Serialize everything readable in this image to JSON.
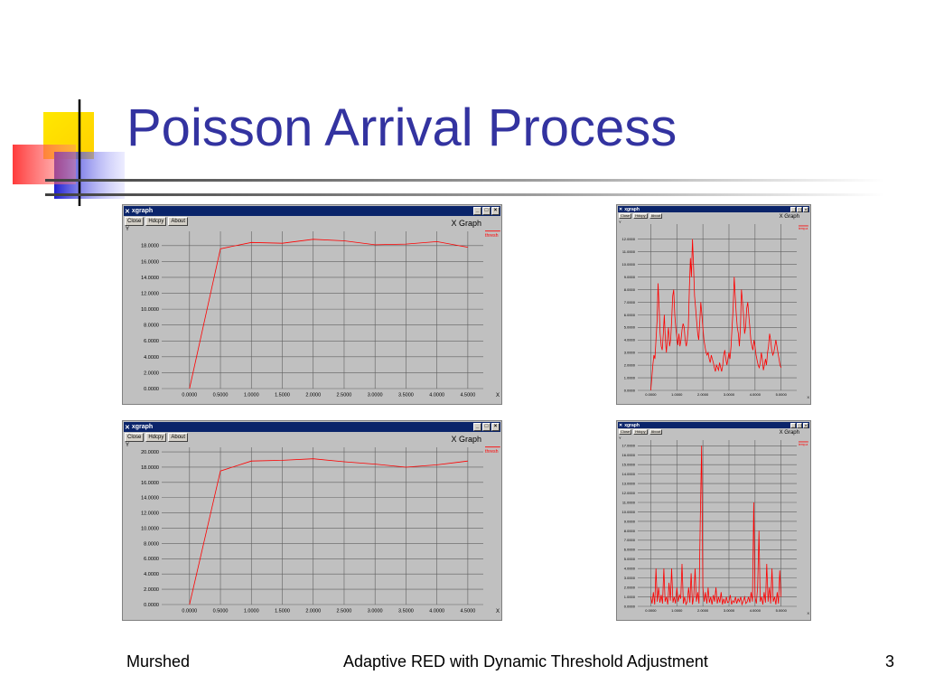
{
  "slide": {
    "title": "Poisson Arrival Process",
    "footer_left": "Murshed",
    "footer_center": "Adaptive RED with Dynamic Threshold Adjustment",
    "footer_right": "3"
  },
  "window": {
    "title": "xgraph",
    "close_label": "Close",
    "hdcpy_label": "Hdcpy",
    "about_label": "About",
    "graph_title": "X Graph",
    "y_axis_label": "Y",
    "x_axis_label": "X",
    "min_glyph": "_",
    "max_glyph": "□",
    "close_glyph": "×"
  },
  "colors": {
    "line": "#ff0000",
    "grid": "#606060",
    "panel": "#c0c0c0",
    "titlebar": "#0a246a",
    "slide_title": "#3333a0"
  },
  "chart_data": [
    {
      "type": "line",
      "series": [
        {
          "name": "thresh",
          "x": [
            0.0,
            0.5,
            1.0,
            1.5,
            2.0,
            2.5,
            3.0,
            3.5,
            4.0,
            4.5
          ],
          "y": [
            0.0,
            17.6,
            18.4,
            18.3,
            18.8,
            18.6,
            18.1,
            18.2,
            18.5,
            17.8
          ]
        }
      ],
      "xticks": [
        "0.0000",
        "0.5000",
        "1.0000",
        "1.5000",
        "2.0000",
        "2.5000",
        "3.0000",
        "3.5000",
        "4.0000",
        "4.5000"
      ],
      "yticks": [
        "0.0000",
        "2.0000",
        "4.0000",
        "6.0000",
        "8.0000",
        "10.0000",
        "12.0000",
        "14.0000",
        "16.0000",
        "18.0000"
      ],
      "xlim": [
        -0.45,
        4.75
      ],
      "ylim": [
        0,
        18.8
      ],
      "ylim_top": 19.8,
      "grid": true
    },
    {
      "type": "line",
      "series": [
        {
          "name": "temp.a",
          "x": [
            0.0,
            0.04,
            0.08,
            0.12,
            0.16,
            0.2,
            0.24,
            0.28,
            0.32,
            0.36,
            0.4,
            0.44,
            0.48,
            0.52,
            0.56,
            0.6,
            0.64,
            0.68,
            0.72,
            0.76,
            0.8,
            0.84,
            0.88,
            0.92,
            0.96,
            1.0,
            1.04,
            1.08,
            1.12,
            1.16,
            1.2,
            1.24,
            1.28,
            1.32,
            1.36,
            1.4,
            1.44,
            1.48,
            1.52,
            1.56,
            1.6,
            1.64,
            1.68,
            1.72,
            1.76,
            1.8,
            1.84,
            1.88,
            1.92,
            1.96,
            2.0,
            2.04,
            2.08,
            2.12,
            2.16,
            2.2,
            2.24,
            2.28,
            2.32,
            2.36,
            2.4,
            2.44,
            2.48,
            2.52,
            2.56,
            2.6,
            2.64,
            2.68,
            2.72,
            2.76,
            2.8,
            2.84,
            2.88,
            2.92,
            2.96,
            3.0,
            3.04,
            3.08,
            3.12,
            3.16,
            3.2,
            3.24,
            3.28,
            3.32,
            3.36,
            3.4,
            3.44,
            3.48,
            3.52,
            3.56,
            3.6,
            3.64,
            3.68,
            3.72,
            3.76,
            3.8,
            3.84,
            3.88,
            3.92,
            3.96,
            4.0,
            4.04,
            4.08,
            4.12,
            4.16,
            4.2,
            4.24,
            4.28,
            4.32,
            4.36,
            4.4,
            4.44,
            4.48,
            4.52,
            4.56,
            4.6,
            4.64,
            4.68,
            4.72,
            4.76,
            4.8,
            4.84,
            4.88,
            4.92,
            4.96,
            5.0
          ],
          "y": [
            0.0,
            1.0,
            2.0,
            2.8,
            2.5,
            4.0,
            5.5,
            8.5,
            6.5,
            4.5,
            3.5,
            3.2,
            4.5,
            6.0,
            4.0,
            3.0,
            4.2,
            5.0,
            3.5,
            4.0,
            5.5,
            7.5,
            8.0,
            6.0,
            5.0,
            4.2,
            3.6,
            4.5,
            3.5,
            4.0,
            4.8,
            5.3,
            5.0,
            4.0,
            3.5,
            4.0,
            5.0,
            8.0,
            10.5,
            9.0,
            12.0,
            10.0,
            7.5,
            6.5,
            5.5,
            4.5,
            4.0,
            5.5,
            7.0,
            6.0,
            5.0,
            4.0,
            3.5,
            3.0,
            2.8,
            3.0,
            2.5,
            2.2,
            2.8,
            2.5,
            2.2,
            1.8,
            1.5,
            2.0,
            1.8,
            1.6,
            2.2,
            1.8,
            1.5,
            2.0,
            2.8,
            3.2,
            2.5,
            2.0,
            2.5,
            3.0,
            2.5,
            3.5,
            5.0,
            6.5,
            9.0,
            7.5,
            6.0,
            5.0,
            4.5,
            3.5,
            5.0,
            8.0,
            7.0,
            6.0,
            4.5,
            5.0,
            6.5,
            7.0,
            6.0,
            5.0,
            4.0,
            3.5,
            3.2,
            4.0,
            3.5,
            2.8,
            2.4,
            2.0,
            1.8,
            2.2,
            3.0,
            2.5,
            1.6,
            2.0,
            2.5,
            2.0,
            3.0,
            3.5,
            4.5,
            4.0,
            3.2,
            2.8,
            3.0,
            3.5,
            4.0,
            3.5,
            3.0,
            2.5,
            2.0,
            1.8
          ]
        }
      ],
      "xticks": [
        "0.0000",
        "1.0000",
        "2.0000",
        "3.0000",
        "4.0000",
        "5.0000"
      ],
      "yticks": [
        "0.0000",
        "1.0000",
        "2.0000",
        "3.0000",
        "4.0000",
        "5.0000",
        "6.0000",
        "7.0000",
        "8.0000",
        "9.0000",
        "10.0000",
        "11.0000",
        "12.0000"
      ],
      "xlim": [
        -0.5,
        5.6
      ],
      "ylim": [
        0,
        12
      ],
      "ylim_top": 13.2,
      "grid": true
    },
    {
      "type": "line",
      "series": [
        {
          "name": "thresh",
          "x": [
            0.0,
            0.5,
            1.0,
            1.5,
            2.0,
            2.5,
            3.0,
            3.5,
            4.0,
            4.5
          ],
          "y": [
            0.0,
            17.5,
            18.8,
            18.9,
            19.1,
            18.7,
            18.4,
            18.0,
            18.3,
            18.8
          ]
        }
      ],
      "xticks": [
        "0.0000",
        "0.5000",
        "1.0000",
        "1.5000",
        "2.0000",
        "2.5000",
        "3.0000",
        "3.5000",
        "4.0000",
        "4.5000"
      ],
      "yticks": [
        "0.0000",
        "2.0000",
        "4.0000",
        "6.0000",
        "8.0000",
        "10.0000",
        "12.0000",
        "14.0000",
        "16.0000",
        "18.0000",
        "20.0000"
      ],
      "xlim": [
        -0.45,
        4.75
      ],
      "ylim": [
        0,
        20
      ],
      "ylim_top": 20.6,
      "grid": true
    },
    {
      "type": "line",
      "series": [
        {
          "name": "temp.a",
          "x": [
            0.0,
            0.05,
            0.1,
            0.15,
            0.2,
            0.25,
            0.3,
            0.35,
            0.4,
            0.45,
            0.5,
            0.55,
            0.6,
            0.65,
            0.7,
            0.75,
            0.8,
            0.85,
            0.9,
            0.95,
            1.0,
            1.05,
            1.1,
            1.15,
            1.2,
            1.25,
            1.3,
            1.35,
            1.4,
            1.45,
            1.5,
            1.55,
            1.6,
            1.65,
            1.7,
            1.75,
            1.8,
            1.85,
            1.9,
            1.95,
            2.0,
            2.05,
            2.1,
            2.15,
            2.2,
            2.25,
            2.3,
            2.35,
            2.4,
            2.45,
            2.5,
            2.55,
            2.6,
            2.65,
            2.7,
            2.75,
            2.8,
            2.85,
            2.9,
            2.95,
            3.0,
            3.05,
            3.1,
            3.15,
            3.2,
            3.25,
            3.3,
            3.35,
            3.4,
            3.45,
            3.5,
            3.55,
            3.6,
            3.65,
            3.7,
            3.75,
            3.8,
            3.85,
            3.9,
            3.95,
            4.0,
            4.05,
            4.1,
            4.15,
            4.2,
            4.25,
            4.3,
            4.35,
            4.4,
            4.45,
            4.5,
            4.55,
            4.6,
            4.65,
            4.7,
            4.75,
            4.8,
            4.85,
            4.9,
            4.95,
            5.0
          ],
          "y": [
            1.0,
            0.3,
            1.5,
            0.2,
            4.0,
            0.5,
            2.0,
            0.4,
            1.2,
            0.3,
            4.0,
            0.5,
            1.0,
            0.2,
            2.5,
            0.6,
            4.0,
            0.4,
            1.0,
            0.3,
            2.0,
            0.5,
            1.2,
            0.8,
            4.5,
            0.3,
            1.0,
            0.2,
            0.5,
            2.0,
            0.4,
            3.5,
            0.2,
            1.0,
            4.0,
            0.5,
            1.5,
            0.3,
            9.0,
            17.0,
            2.0,
            0.5,
            1.5,
            0.3,
            2.0,
            0.4,
            1.0,
            0.2,
            1.2,
            0.5,
            2.0,
            0.3,
            1.0,
            0.4,
            1.5,
            0.2,
            0.8,
            0.3,
            1.0,
            0.4,
            0.5,
            1.2,
            0.2,
            0.6,
            0.4,
            1.0,
            0.3,
            0.8,
            0.5,
            1.0,
            0.2,
            0.6,
            1.0,
            0.3,
            0.5,
            1.0,
            0.4,
            1.5,
            0.5,
            11.0,
            1.0,
            0.3,
            2.0,
            8.0,
            0.5,
            1.0,
            0.2,
            1.5,
            0.4,
            4.5,
            0.5,
            2.0,
            0.3,
            4.0,
            0.5,
            1.0,
            0.2,
            1.5,
            0.3,
            3.8,
            1.0
          ]
        }
      ],
      "xticks": [
        "0.0000",
        "1.0000",
        "2.0000",
        "3.0000",
        "4.0000",
        "5.0000"
      ],
      "yticks": [
        "0.0000",
        "1.0000",
        "2.0000",
        "3.0000",
        "4.0000",
        "5.0000",
        "6.0000",
        "7.0000",
        "8.0000",
        "9.0000",
        "10.0000",
        "11.0000",
        "12.0000",
        "13.0000",
        "14.0000",
        "15.0000",
        "16.0000",
        "17.0000"
      ],
      "xlim": [
        -0.5,
        5.6
      ],
      "ylim": [
        0,
        17
      ],
      "ylim_top": 17.6,
      "grid": true
    }
  ]
}
